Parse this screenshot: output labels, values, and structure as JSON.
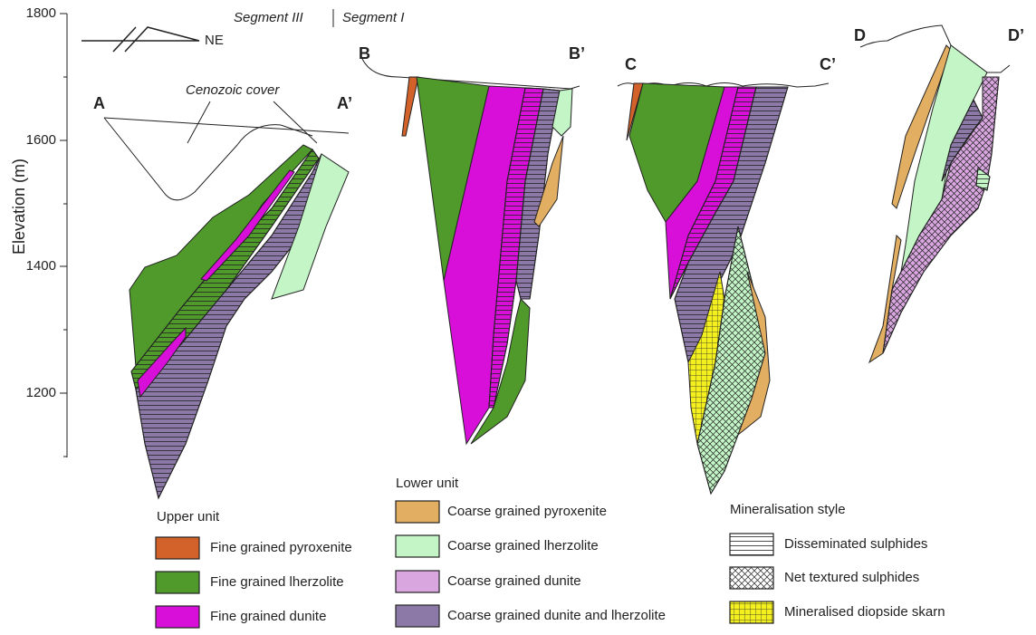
{
  "axis": {
    "label": "Elevation (m)",
    "ticks": [
      "1800",
      "1600",
      "1400",
      "1200"
    ]
  },
  "segments": [
    "Segment III",
    "Segment I"
  ],
  "north_arrow": "NE",
  "annotation": "Cenozoic cover",
  "sections": [
    {
      "start": "A",
      "end": "A’"
    },
    {
      "start": "B",
      "end": "B’"
    },
    {
      "start": "C",
      "end": "C’"
    },
    {
      "start": "D",
      "end": "D’"
    }
  ],
  "legend": {
    "upper_unit": {
      "title": "Upper unit",
      "items": [
        "Fine grained pyroxenite",
        "Fine grained lherzolite",
        "Fine grained dunite"
      ]
    },
    "lower_unit": {
      "title": "Lower unit",
      "items": [
        "Coarse grained pyroxenite",
        "Coarse grained lherzolite",
        "Coarse grained dunite",
        "Coarse grained dunite and lherzolite"
      ]
    },
    "mineralisation": {
      "title": "Mineralisation style",
      "items": [
        "Disseminated sulphides",
        "Net textured sulphides",
        "Mineralised diopside skarn"
      ]
    }
  }
}
